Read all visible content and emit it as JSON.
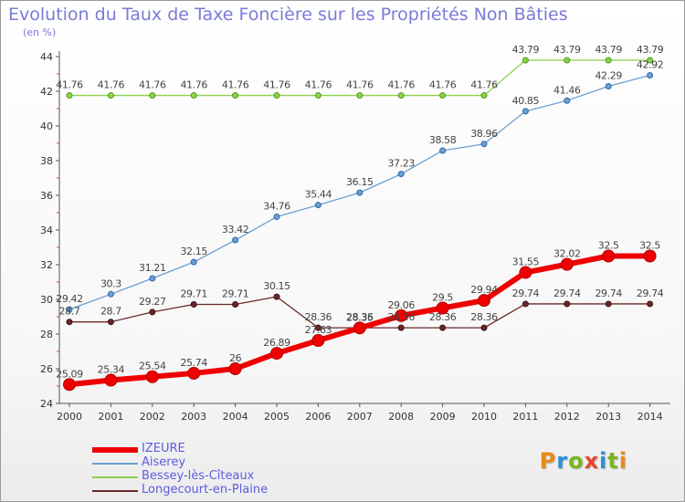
{
  "header": {
    "title": "Evolution du Taux de Taxe Foncière sur les Propriétés Non Bâties",
    "subtitle": "(en %)"
  },
  "brand": {
    "letters": [
      {
        "char": "P",
        "color": "#e88a1a"
      },
      {
        "char": "r",
        "color": "#2f8fd8"
      },
      {
        "char": "o",
        "color": "#7ab61e"
      },
      {
        "char": "x",
        "color": "#e8452a"
      },
      {
        "char": "i",
        "color": "#2f8fd8"
      },
      {
        "char": "t",
        "color": "#7ab61e"
      },
      {
        "char": "i",
        "color": "#e88a1a"
      }
    ]
  },
  "chart_data": {
    "type": "line",
    "title": "Evolution du Taux de Taxe Foncière sur les Propriétés Non Bâties",
    "ylabel": "(en %)",
    "xlabel": "",
    "ylim": [
      24,
      44
    ],
    "yticks": [
      "24",
      "26",
      "28",
      "30",
      "32",
      "34",
      "36",
      "38",
      "40",
      "42",
      "44"
    ],
    "grid": false,
    "legend_position": "bottom-left",
    "x": [
      "2000",
      "2001",
      "2002",
      "2003",
      "2004",
      "2005",
      "2006",
      "2007",
      "2008",
      "2009",
      "2010",
      "2011",
      "2012",
      "2013",
      "2014"
    ],
    "series": [
      {
        "name": "IZEURE",
        "color": "#ee0000",
        "values": [
          25.09,
          25.34,
          25.54,
          25.74,
          26,
          26.89,
          27.63,
          28.35,
          29.06,
          29.5,
          29.94,
          31.55,
          32.02,
          32.5,
          32.5
        ],
        "labels": [
          "25.09",
          "25.34",
          "25.54",
          "25.74",
          "26",
          "26.89",
          "27.63",
          "28.35",
          "29.06",
          "29.5",
          "29.94",
          "31.55",
          "32.02",
          "32.5",
          "32.5"
        ]
      },
      {
        "name": "Aiserey",
        "color": "#6d9fd0",
        "values": [
          29.42,
          30.3,
          31.21,
          32.15,
          33.42,
          34.76,
          35.44,
          36.15,
          37.23,
          38.58,
          38.96,
          40.85,
          41.46,
          42.29,
          42.92
        ],
        "labels": [
          "29.42",
          "30.3",
          "31.21",
          "32.15",
          "33.42",
          "34.76",
          "35.44",
          "36.15",
          "37.23",
          "38.58",
          "38.96",
          "40.85",
          "41.46",
          "42.29",
          "42.92"
        ]
      },
      {
        "name": "Bessey-lès-Cîteaux",
        "color": "#8cd24a",
        "values": [
          41.76,
          41.76,
          41.76,
          41.76,
          41.76,
          41.76,
          41.76,
          41.76,
          41.76,
          41.76,
          41.76,
          43.79,
          43.79,
          43.79,
          43.79
        ],
        "labels": [
          "41.76",
          "41.76",
          "41.76",
          "41.76",
          "41.76",
          "41.76",
          "41.76",
          "41.76",
          "41.76",
          "41.76",
          "41.76",
          "43.79",
          "43.79",
          "43.79",
          "43.79"
        ]
      },
      {
        "name": "Longecourt-en-Plaine",
        "color": "#6b2828",
        "values": [
          28.7,
          28.7,
          29.27,
          29.71,
          29.71,
          30.15,
          28.36,
          28.36,
          28.36,
          28.36,
          28.36,
          29.74,
          29.74,
          29.74,
          29.74
        ],
        "labels": [
          "28.7",
          "28.7",
          "29.27",
          "29.71",
          "29.71",
          "30.15",
          "28.36",
          "28.36",
          "28.36",
          "28.36",
          "28.36",
          "29.74",
          "29.74",
          "29.74",
          "29.74"
        ]
      }
    ]
  }
}
